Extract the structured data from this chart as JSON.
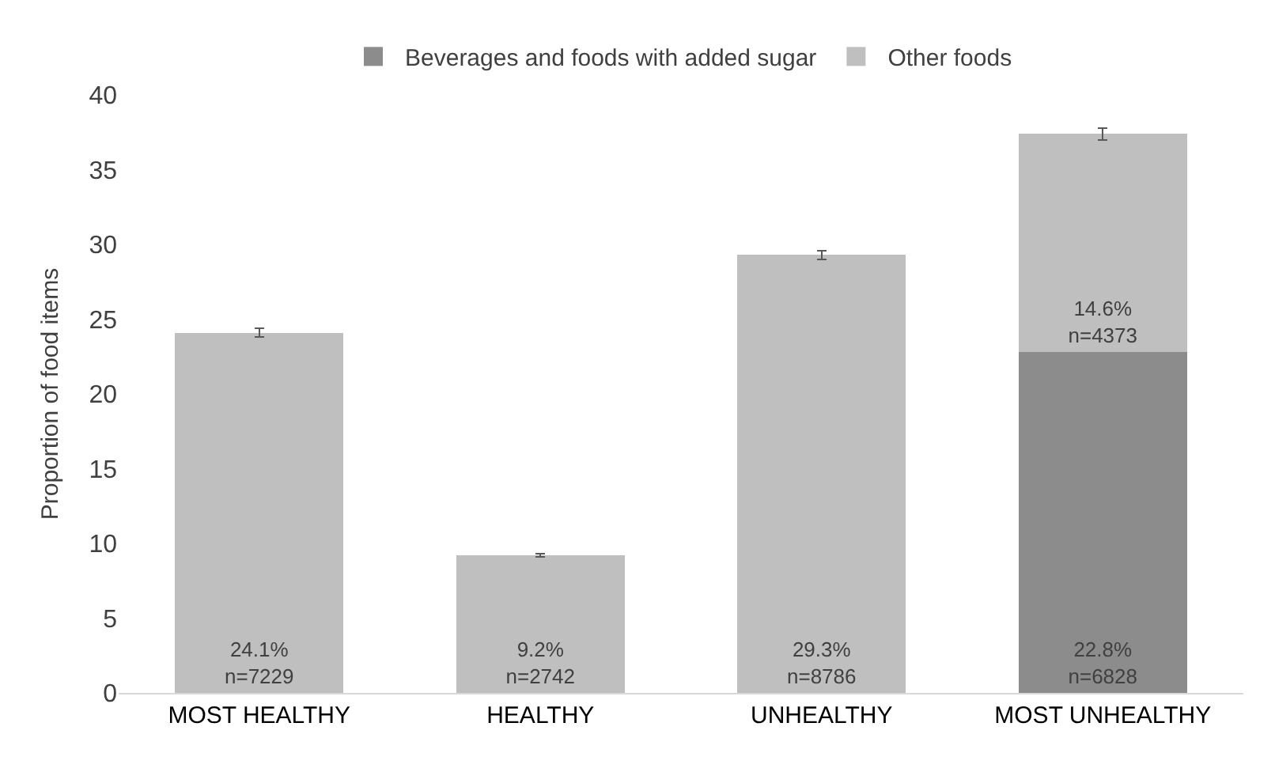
{
  "chart_data": {
    "type": "bar",
    "ylabel": "Proportion of food items",
    "categories": [
      "MOST HEALTHY",
      "HEALTHY",
      "UNHEALTHY",
      "MOST UNHEALTHY"
    ],
    "stacked": true,
    "series": [
      {
        "name": "Beverages and foods with added sugar",
        "color": "#8c8c8c",
        "values": [
          null,
          null,
          null,
          22.8
        ],
        "value_labels": [
          null,
          null,
          null,
          "22.8%\nn=6828"
        ]
      },
      {
        "name": "Other foods",
        "color": "#bfbfbf",
        "values": [
          24.1,
          9.2,
          29.3,
          14.6
        ],
        "errors": [
          0.3,
          0.1,
          0.3,
          0.4
        ],
        "value_labels": [
          "24.1%\nn=7229",
          "9.2%\nn=2742",
          "29.3%\nn=8786",
          "14.6%\nn=4373"
        ]
      }
    ],
    "ylim": [
      0,
      40
    ],
    "yticks": [
      0,
      5,
      10,
      15,
      20,
      25,
      30,
      35,
      40
    ],
    "legend": "top"
  }
}
